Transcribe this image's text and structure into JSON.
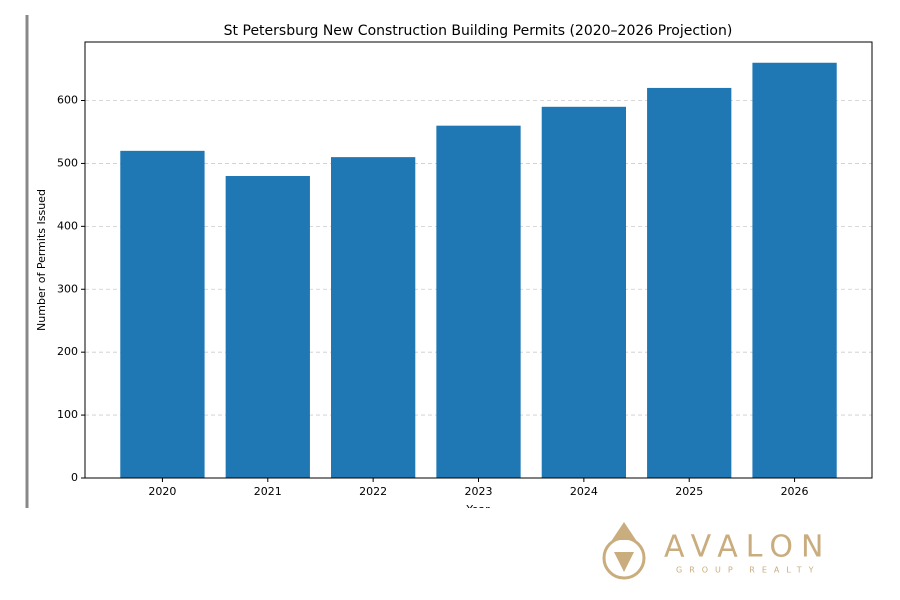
{
  "chart_data": {
    "type": "bar",
    "title": "St Petersburg New Construction Building Permits (2020–2026 Projection)",
    "x_label": "Year",
    "y_label": "Number of Permits Issued",
    "categories": [
      "2020",
      "2021",
      "2022",
      "2023",
      "2024",
      "2025",
      "2026"
    ],
    "values": [
      520,
      480,
      510,
      560,
      590,
      620,
      660
    ],
    "color": "#1f77b4",
    "ylim": [
      0,
      693
    ],
    "yticks": [
      0,
      100,
      200,
      300,
      400,
      500,
      600
    ],
    "grid": true
  },
  "logo": {
    "name": "AVALON",
    "tagline": "GROUP REALTY"
  }
}
